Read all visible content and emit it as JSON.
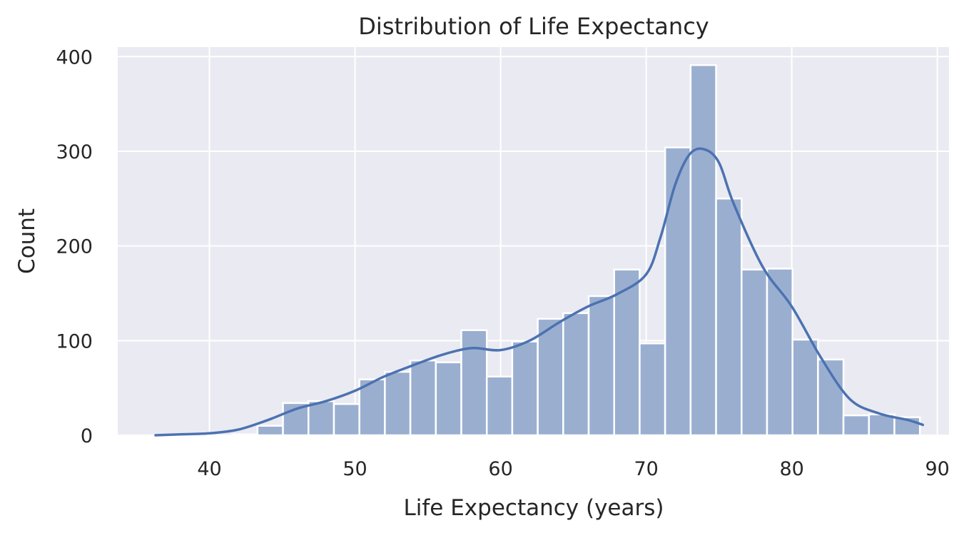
{
  "chart_data": {
    "type": "bar",
    "subtype": "histogram_with_kde",
    "title": "Distribution of Life Expectancy",
    "xlabel": "Life Expectancy (years)",
    "ylabel": "Count",
    "xlim": [
      33.7,
      90.8
    ],
    "ylim": [
      0,
      410
    ],
    "xticks": [
      40,
      50,
      60,
      70,
      80,
      90
    ],
    "yticks": [
      0,
      100,
      200,
      300,
      400
    ],
    "grid": true,
    "legend": "none",
    "bin_width": 1.75,
    "bins": [
      {
        "x0": 36.3,
        "x1": 38.05,
        "count": 0
      },
      {
        "x0": 38.05,
        "x1": 39.8,
        "count": 0
      },
      {
        "x0": 39.8,
        "x1": 41.55,
        "count": 0
      },
      {
        "x0": 41.55,
        "x1": 43.3,
        "count": 1
      },
      {
        "x0": 43.3,
        "x1": 45.05,
        "count": 10
      },
      {
        "x0": 45.05,
        "x1": 46.8,
        "count": 34
      },
      {
        "x0": 46.8,
        "x1": 48.55,
        "count": 36
      },
      {
        "x0": 48.55,
        "x1": 50.3,
        "count": 33
      },
      {
        "x0": 50.3,
        "x1": 52.05,
        "count": 59
      },
      {
        "x0": 52.05,
        "x1": 53.8,
        "count": 67
      },
      {
        "x0": 53.8,
        "x1": 55.55,
        "count": 79
      },
      {
        "x0": 55.55,
        "x1": 57.3,
        "count": 77
      },
      {
        "x0": 57.3,
        "x1": 59.05,
        "count": 111
      },
      {
        "x0": 59.05,
        "x1": 60.8,
        "count": 62
      },
      {
        "x0": 60.8,
        "x1": 62.55,
        "count": 99
      },
      {
        "x0": 62.55,
        "x1": 64.3,
        "count": 123
      },
      {
        "x0": 64.3,
        "x1": 66.05,
        "count": 129
      },
      {
        "x0": 66.05,
        "x1": 67.8,
        "count": 147
      },
      {
        "x0": 67.8,
        "x1": 69.55,
        "count": 175
      },
      {
        "x0": 69.55,
        "x1": 71.3,
        "count": 97
      },
      {
        "x0": 71.3,
        "x1": 73.05,
        "count": 304
      },
      {
        "x0": 73.05,
        "x1": 74.8,
        "count": 391
      },
      {
        "x0": 74.8,
        "x1": 76.55,
        "count": 250
      },
      {
        "x0": 76.55,
        "x1": 78.3,
        "count": 175
      },
      {
        "x0": 78.3,
        "x1": 80.05,
        "count": 176
      },
      {
        "x0": 80.05,
        "x1": 81.8,
        "count": 101
      },
      {
        "x0": 81.8,
        "x1": 83.55,
        "count": 80
      },
      {
        "x0": 83.55,
        "x1": 85.3,
        "count": 21
      },
      {
        "x0": 85.3,
        "x1": 87.05,
        "count": 22
      },
      {
        "x0": 87.05,
        "x1": 88.8,
        "count": 19
      }
    ],
    "kde": {
      "x": [
        36.3,
        38,
        40,
        42,
        44,
        46,
        48,
        50,
        52,
        54,
        56,
        58,
        60,
        62,
        64,
        66,
        68,
        70,
        71,
        72,
        73,
        74,
        75,
        76,
        78,
        80,
        82,
        84,
        86,
        88,
        89
      ],
      "y": [
        0,
        1,
        2,
        6,
        16,
        28,
        36,
        47,
        62,
        74,
        85,
        92,
        90,
        100,
        119,
        136,
        149,
        170,
        210,
        265,
        297,
        302,
        288,
        245,
        178,
        136,
        82,
        38,
        23,
        16,
        11
      ]
    },
    "colors": {
      "bar_fill": "#9aafd0",
      "bar_edge": "#ffffff",
      "kde_line": "#4c72b0",
      "plot_bg": "#eaeaf2",
      "grid": "#ffffff"
    }
  }
}
